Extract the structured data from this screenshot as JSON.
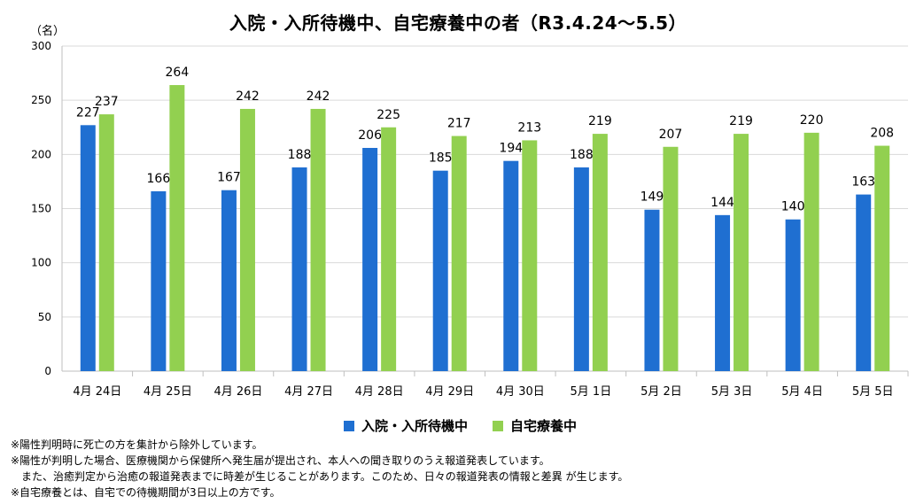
{
  "chart_data": {
    "type": "bar",
    "title": "入院・入所待機中、自宅療養中の者（R3.4.24～5.5）",
    "unit_label": "（名）",
    "categories": [
      "4月 24日",
      "4月 25日",
      "4月 26日",
      "4月 27日",
      "4月 28日",
      "4月 29日",
      "4月 30日",
      "5月 1日",
      "5月 2日",
      "5月 3日",
      "5月 4日",
      "5月 5日"
    ],
    "series": [
      {
        "name": "入院・入所待機中",
        "color": "#1f6fd1",
        "values": [
          227,
          166,
          167,
          188,
          206,
          185,
          194,
          188,
          149,
          144,
          140,
          163
        ]
      },
      {
        "name": "自宅療養中",
        "color": "#92d050",
        "values": [
          237,
          264,
          242,
          242,
          225,
          217,
          213,
          219,
          207,
          219,
          220,
          208
        ]
      }
    ],
    "ylim": [
      0,
      300
    ],
    "yticks": [
      0,
      50,
      100,
      150,
      200,
      250,
      300
    ],
    "grid": true,
    "legend_position": "bottom"
  },
  "notes": [
    "※陽性判明時に死亡の方を集計から除外しています。",
    "※陽性が判明した場合、医療機関から保健所へ発生届が提出され、本人への聞き取りのうえ報道発表しています。",
    "また、治癒判定から治癒の報道発表までに時差が生じることがあります。このため、日々の報道発表の情報と差異 が生じます。",
    "※自宅療養とは、自宅での待機期間が3日以上の方です。"
  ]
}
